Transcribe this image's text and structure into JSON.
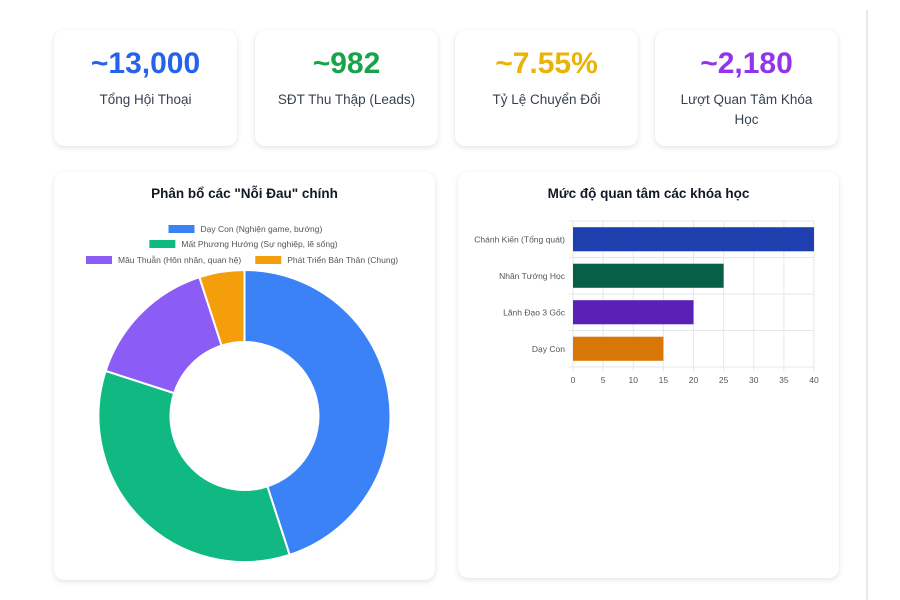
{
  "kpis": [
    {
      "value": "~13,000",
      "label": "Tổng Hội Thoại",
      "color": "#2563eb"
    },
    {
      "value": "~982",
      "label": "SĐT Thu Thập (Leads)",
      "color": "#16a34a"
    },
    {
      "value": "~7.55%",
      "label": "Tỷ Lệ Chuyển Đổi",
      "color": "#eab308"
    },
    {
      "value": "~2,180",
      "label": "Lượt Quan Tâm Khóa Học",
      "color": "#9333ea"
    }
  ],
  "chart_data": [
    {
      "type": "pie",
      "title": "Phân bổ các \"Nỗi Đau\" chính",
      "legend_position": "top",
      "categories": [
        "Dạy Con (Nghiện game, bướng)",
        "Mất Phương Hướng (Sự nghiệp, lẽ sống)",
        "Mâu Thuẫn (Hôn nhân, quan hệ)",
        "Phát Triển Bản Thân (Chung)"
      ],
      "values": [
        45,
        35,
        15,
        5
      ],
      "colors": [
        "#3b82f6",
        "#10b981",
        "#8b5cf6",
        "#f59e0b"
      ]
    },
    {
      "type": "bar",
      "orientation": "horizontal",
      "title": "Mức độ quan tâm các khóa học",
      "categories": [
        "Chánh Kiến (Tổng quát)",
        "Nhân Tướng Học",
        "Lãnh Đạo 3 Gốc",
        "Dạy Con"
      ],
      "values": [
        40,
        25,
        20,
        15
      ],
      "colors": [
        "#1e40af",
        "#065f46",
        "#5b21b6",
        "#d97706"
      ],
      "xlim": [
        0,
        40
      ],
      "xticks": [
        0,
        5,
        10,
        15,
        20,
        25,
        30,
        35,
        40
      ],
      "grid": true
    }
  ]
}
